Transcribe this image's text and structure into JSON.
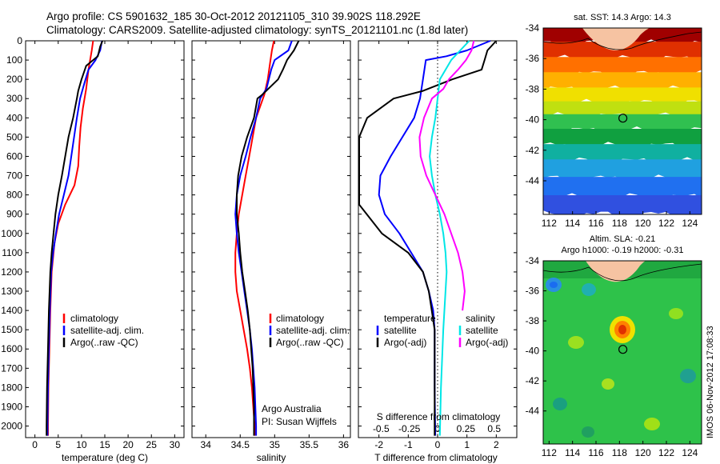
{
  "header": {
    "line1": "Argo profile: CS 5901632_185 30-Oct-2012 20121105_310 39.902S 118.292E",
    "line2": "Climatology: CARS2009. Satellite-adjusted climatology: synTS_20121101.nc (1.8d later)"
  },
  "footer": {
    "imos_stamp": "IMOS 06-Nov-2012 17:08:33"
  },
  "colors": {
    "climatology": "#ff0000",
    "satellite": "#0000ff",
    "argo": "#000000",
    "salinity_satellite": "#00e6e6",
    "salinity_argo": "#ff00ff",
    "zero_line": "#000000"
  },
  "chart_data": [
    {
      "type": "line",
      "xlabel": "temperature (deg C)",
      "ylabel": "",
      "xlim": [
        -2,
        32
      ],
      "ylim": [
        2060,
        0
      ],
      "xticks": [
        0,
        5,
        10,
        15,
        20,
        25,
        30
      ],
      "yticks": [
        0,
        100,
        200,
        300,
        400,
        500,
        600,
        700,
        800,
        900,
        1000,
        1100,
        1200,
        1300,
        1400,
        1500,
        1600,
        1700,
        1800,
        1900,
        2000
      ],
      "legend": [
        "climatology",
        "satellite-adj. clim.",
        "Argo(..raw -QC)"
      ],
      "series": [
        {
          "name": "climatology",
          "points": [
            [
              12.5,
              0
            ],
            [
              12.2,
              50
            ],
            [
              11.5,
              150
            ],
            [
              11.0,
              250
            ],
            [
              10.3,
              350
            ],
            [
              9.8,
              450
            ],
            [
              9.5,
              550
            ],
            [
              9.3,
              650
            ],
            [
              8.5,
              750
            ],
            [
              6.5,
              850
            ],
            [
              5.0,
              950
            ],
            [
              4.2,
              1050
            ],
            [
              3.6,
              1200
            ],
            [
              3.3,
              1400
            ],
            [
              3.1,
              1600
            ],
            [
              2.9,
              1800
            ],
            [
              2.8,
              2000
            ],
            [
              2.8,
              2050
            ]
          ]
        },
        {
          "name": "satellite-adj. clim.",
          "points": [
            [
              14.4,
              0
            ],
            [
              14.0,
              50
            ],
            [
              13.0,
              100
            ],
            [
              11.5,
              150
            ],
            [
              10.5,
              230
            ],
            [
              9.7,
              300
            ],
            [
              9.0,
              400
            ],
            [
              8.4,
              500
            ],
            [
              7.8,
              600
            ],
            [
              7.2,
              700
            ],
            [
              6.2,
              800
            ],
            [
              5.2,
              900
            ],
            [
              4.5,
              1000
            ],
            [
              3.9,
              1100
            ],
            [
              3.5,
              1200
            ],
            [
              3.2,
              1400
            ],
            [
              3.0,
              1600
            ],
            [
              2.8,
              1800
            ],
            [
              2.7,
              2000
            ],
            [
              2.7,
              2050
            ]
          ]
        },
        {
          "name": "Argo(..raw -QC)",
          "points": [
            [
              14.5,
              0
            ],
            [
              14.0,
              30
            ],
            [
              13.5,
              80
            ],
            [
              12.0,
              110
            ],
            [
              11.0,
              130
            ],
            [
              10.0,
              200
            ],
            [
              9.3,
              260
            ],
            [
              9.0,
              300
            ],
            [
              8.2,
              400
            ],
            [
              7.2,
              500
            ],
            [
              6.5,
              600
            ],
            [
              5.8,
              700
            ],
            [
              5.0,
              800
            ],
            [
              4.4,
              900
            ],
            [
              4.0,
              1000
            ],
            [
              3.6,
              1100
            ],
            [
              3.3,
              1200
            ],
            [
              3.0,
              1400
            ],
            [
              2.8,
              1600
            ],
            [
              2.6,
              1800
            ],
            [
              2.5,
              2000
            ],
            [
              2.5,
              2050
            ]
          ]
        }
      ]
    },
    {
      "type": "line",
      "xlabel": "salinity",
      "xlim": [
        33.8,
        36.1
      ],
      "ylim": [
        2060,
        0
      ],
      "xticks": [
        34,
        34.5,
        35,
        35.5,
        36
      ],
      "legend": [
        "climatology",
        "satellite-adj. clim.",
        "Argo(..raw -QC)"
      ],
      "annotations": [
        "Argo Australia",
        "PI: Susan Wijffels"
      ],
      "series": [
        {
          "name": "climatology",
          "points": [
            [
              34.99,
              0
            ],
            [
              34.96,
              50
            ],
            [
              34.94,
              100
            ],
            [
              34.9,
              200
            ],
            [
              34.85,
              280
            ],
            [
              34.78,
              350
            ],
            [
              34.73,
              400
            ],
            [
              34.68,
              500
            ],
            [
              34.63,
              600
            ],
            [
              34.58,
              700
            ],
            [
              34.53,
              800
            ],
            [
              34.48,
              900
            ],
            [
              34.45,
              1000
            ],
            [
              34.43,
              1100
            ],
            [
              34.43,
              1200
            ],
            [
              34.45,
              1300
            ],
            [
              34.5,
              1400
            ],
            [
              34.55,
              1500
            ],
            [
              34.6,
              1600
            ],
            [
              34.64,
              1700
            ],
            [
              34.67,
              1800
            ],
            [
              34.69,
              1900
            ],
            [
              34.71,
              2000
            ],
            [
              34.72,
              2050
            ]
          ]
        },
        {
          "name": "satellite-adj. clim.",
          "points": [
            [
              35.25,
              0
            ],
            [
              35.2,
              50
            ],
            [
              35.0,
              100
            ],
            [
              34.95,
              150
            ],
            [
              34.88,
              250
            ],
            [
              34.79,
              300
            ],
            [
              34.73,
              400
            ],
            [
              34.65,
              500
            ],
            [
              34.58,
              600
            ],
            [
              34.5,
              700
            ],
            [
              34.45,
              800
            ],
            [
              34.43,
              900
            ],
            [
              34.45,
              1000
            ],
            [
              34.48,
              1100
            ],
            [
              34.52,
              1200
            ],
            [
              34.56,
              1300
            ],
            [
              34.6,
              1400
            ],
            [
              34.64,
              1500
            ],
            [
              34.67,
              1600
            ],
            [
              34.69,
              1700
            ],
            [
              34.71,
              1800
            ],
            [
              34.72,
              1900
            ],
            [
              34.73,
              2000
            ],
            [
              34.73,
              2050
            ]
          ]
        },
        {
          "name": "Argo(..raw -QC)",
          "points": [
            [
              35.35,
              0
            ],
            [
              35.28,
              50
            ],
            [
              35.18,
              100
            ],
            [
              35.12,
              150
            ],
            [
              35.05,
              200
            ],
            [
              34.82,
              280
            ],
            [
              34.75,
              300
            ],
            [
              34.7,
              400
            ],
            [
              34.6,
              500
            ],
            [
              34.52,
              600
            ],
            [
              34.47,
              700
            ],
            [
              34.45,
              800
            ],
            [
              34.45,
              900
            ],
            [
              34.48,
              1000
            ],
            [
              34.5,
              1100
            ],
            [
              34.53,
              1200
            ],
            [
              34.57,
              1300
            ],
            [
              34.61,
              1400
            ],
            [
              34.64,
              1500
            ],
            [
              34.66,
              1600
            ],
            [
              34.68,
              1700
            ],
            [
              34.69,
              1800
            ],
            [
              34.7,
              1900
            ],
            [
              34.7,
              2000
            ],
            [
              34.7,
              2050
            ]
          ]
        }
      ]
    },
    {
      "type": "line",
      "xlabel": "T difference from climatology",
      "x2label": "S difference from climatology",
      "xlim": [
        -2.7,
        2.7
      ],
      "ylim": [
        2060,
        0
      ],
      "xticks": [
        -2,
        -1,
        0,
        1,
        2
      ],
      "x2ticks": [
        -0.5,
        -0.25,
        0,
        0.25,
        0.5
      ],
      "x2tick_labels": [
        "-0.5",
        "-0.25",
        "0",
        "0.25",
        "0.5"
      ],
      "legend_titles": [
        "temperature",
        "salinity"
      ],
      "legend": [
        "satellite",
        "Argo(-adj)",
        "satellite",
        "Argo(-adj)"
      ],
      "series": [
        {
          "name": "satellite",
          "variable": "temperature",
          "points": [
            [
              1.8,
              0
            ],
            [
              1.0,
              50
            ],
            [
              0.3,
              80
            ],
            [
              -0.4,
              100
            ],
            [
              -0.5,
              200
            ],
            [
              -0.6,
              300
            ],
            [
              -0.8,
              400
            ],
            [
              -1.2,
              500
            ],
            [
              -1.6,
              600
            ],
            [
              -1.95,
              700
            ],
            [
              -2.0,
              800
            ],
            [
              -1.8,
              900
            ],
            [
              -1.3,
              1000
            ],
            [
              -0.9,
              1100
            ],
            [
              -0.5,
              1200
            ],
            [
              -0.3,
              1300
            ],
            [
              -0.15,
              1400
            ],
            [
              -0.1,
              1500
            ],
            [
              -0.1,
              1800
            ],
            [
              -0.08,
              2050
            ]
          ]
        },
        {
          "name": "Argo(-adj)",
          "variable": "temperature",
          "points": [
            [
              2.0,
              0
            ],
            [
              1.7,
              50
            ],
            [
              1.6,
              100
            ],
            [
              1.5,
              150
            ],
            [
              0.5,
              200
            ],
            [
              -0.5,
              260
            ],
            [
              -1.5,
              300
            ],
            [
              -2.4,
              400
            ],
            [
              -2.7,
              500
            ],
            [
              -2.7,
              850
            ],
            [
              -1.9,
              1000
            ],
            [
              -1.0,
              1100
            ],
            [
              -0.5,
              1200
            ],
            [
              -0.3,
              1300
            ],
            [
              -0.2,
              1400
            ],
            [
              -0.1,
              1500
            ],
            [
              -0.1,
              1800
            ],
            [
              -0.1,
              2050
            ]
          ]
        },
        {
          "name": "satellite",
          "variable": "salinity",
          "points": [
            [
              0.28,
              0
            ],
            [
              0.2,
              50
            ],
            [
              0.12,
              100
            ],
            [
              0.02,
              200
            ],
            [
              0.0,
              300
            ],
            [
              -0.02,
              400
            ],
            [
              -0.05,
              500
            ],
            [
              -0.07,
              600
            ],
            [
              -0.05,
              700
            ],
            [
              -0.02,
              800
            ],
            [
              0.02,
              900
            ],
            [
              0.05,
              1000
            ],
            [
              0.07,
              1100
            ],
            [
              0.08,
              1200
            ],
            [
              0.07,
              1300
            ],
            [
              0.05,
              1500
            ],
            [
              0.03,
              1800
            ],
            [
              0.02,
              2050
            ]
          ]
        },
        {
          "name": "Argo(-adj)",
          "variable": "salinity",
          "points": [
            [
              0.32,
              0
            ],
            [
              0.3,
              50
            ],
            [
              0.25,
              100
            ],
            [
              0.18,
              150
            ],
            [
              0.1,
              200
            ],
            [
              0.05,
              250
            ],
            [
              -0.05,
              300
            ],
            [
              -0.12,
              400
            ],
            [
              -0.16,
              500
            ],
            [
              -0.15,
              600
            ],
            [
              -0.1,
              700
            ],
            [
              -0.02,
              800
            ],
            [
              0.06,
              900
            ],
            [
              0.12,
              1000
            ],
            [
              0.18,
              1100
            ],
            [
              0.22,
              1200
            ],
            [
              0.24,
              1300
            ],
            [
              0.22,
              1400
            ]
          ]
        }
      ]
    }
  ],
  "maps": [
    {
      "title": "sat. SST: 14.3 Argo: 14.3",
      "xticks": [
        112,
        114,
        116,
        118,
        120,
        122,
        124
      ],
      "yticks": [
        -34,
        -36,
        -38,
        -40,
        -42,
        -44
      ],
      "xlim": [
        111.5,
        125
      ],
      "ylim": [
        -46.2,
        -34
      ],
      "marker": [
        118.29,
        -39.9
      ],
      "field_bands": [
        {
          "lat": -34.5,
          "color": "#a00000"
        },
        {
          "lat": -35.5,
          "color": "#e03000"
        },
        {
          "lat": -36.5,
          "color": "#ff7000"
        },
        {
          "lat": -37.5,
          "color": "#ffb000"
        },
        {
          "lat": -38.5,
          "color": "#f0e000"
        },
        {
          "lat": -39.3,
          "color": "#c0e010"
        },
        {
          "lat": -40.2,
          "color": "#30c050"
        },
        {
          "lat": -41.2,
          "color": "#10a040"
        },
        {
          "lat": -42.2,
          "color": "#10b0a0"
        },
        {
          "lat": -43.2,
          "color": "#20a0e0"
        },
        {
          "lat": -44.5,
          "color": "#2070f0"
        },
        {
          "lat": -45.6,
          "color": "#3050e0"
        }
      ]
    },
    {
      "title": "Altim. SLA: -0.21",
      "subtitle": "Argo h1000: -0.19 h2000: -0.31",
      "xticks": [
        112,
        114,
        116,
        118,
        120,
        122,
        124
      ],
      "yticks": [
        -34,
        -36,
        -38,
        -40,
        -42,
        -44
      ],
      "xlim": [
        111.5,
        125
      ],
      "ylim": [
        -46.2,
        -34
      ],
      "marker": [
        118.29,
        -39.9
      ]
    }
  ]
}
